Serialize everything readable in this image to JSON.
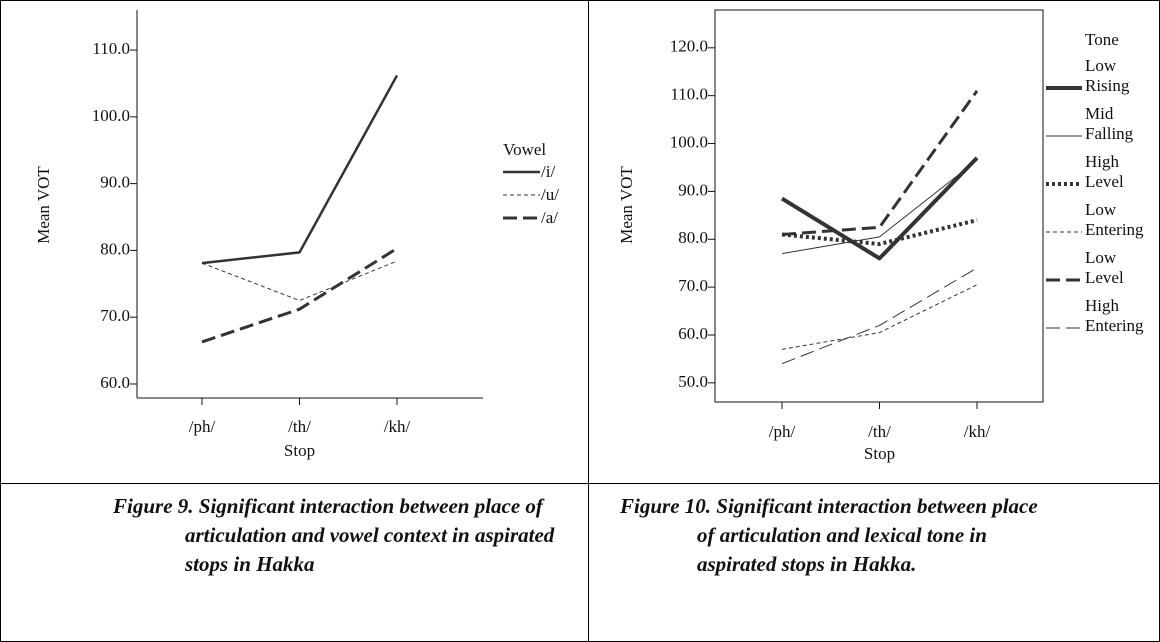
{
  "chart_data": [
    {
      "type": "line",
      "y_label": "Mean VOT",
      "x_label": "Stop",
      "legend_title": "Vowel",
      "categories": [
        "/ph/",
        "/th/",
        "/kh/"
      ],
      "ylim": [
        57.9,
        116.0
      ],
      "yticks": [
        {
          "value": 60,
          "label": "60.0"
        },
        {
          "value": 70,
          "label": "70.0"
        },
        {
          "value": 80,
          "label": "80.0"
        },
        {
          "value": 90,
          "label": "90.0"
        },
        {
          "value": 100,
          "label": "100.0"
        },
        {
          "value": 110,
          "label": "110.0"
        }
      ],
      "frame": false,
      "series": [
        {
          "name": "/i/",
          "color": "#333333",
          "linestyle": "solid",
          "linewidth": 2.5,
          "values": [
            78.1,
            79.7,
            106.2
          ]
        },
        {
          "name": "/u/",
          "color": "#333333",
          "linestyle": "dashed",
          "linewidth": 1,
          "values": [
            78.1,
            72.5,
            78.4
          ]
        },
        {
          "name": "/a/",
          "color": "#333333",
          "linestyle": "longdash",
          "linewidth": 3,
          "values": [
            66.3,
            71.2,
            80.3
          ]
        }
      ],
      "caption": "Figure 9. Significant interaction between place of articulation and vowel context in aspirated stops in Hakka"
    },
    {
      "type": "line",
      "y_label": "Mean VOT",
      "x_label": "Stop",
      "legend_title": "Tone",
      "categories": [
        "/ph/",
        "/th/",
        "/kh/"
      ],
      "ylim": [
        46.0,
        127.9
      ],
      "yticks": [
        {
          "value": 50,
          "label": "50.0"
        },
        {
          "value": 60,
          "label": "60.0"
        },
        {
          "value": 70,
          "label": "70.0"
        },
        {
          "value": 80,
          "label": "80.0"
        },
        {
          "value": 90,
          "label": "90.0"
        },
        {
          "value": 100,
          "label": "100.0"
        },
        {
          "value": 110,
          "label": "110.0"
        },
        {
          "value": 120,
          "label": "120.0"
        }
      ],
      "frame": true,
      "series": [
        {
          "name": "Low Rising",
          "color": "#333333",
          "linestyle": "solid",
          "linewidth": 4,
          "values": [
            88.5,
            76.0,
            97.0
          ]
        },
        {
          "name": "Mid Falling",
          "color": "#333333",
          "linestyle": "solid",
          "linewidth": 1,
          "values": [
            77.0,
            80.5,
            96.5
          ]
        },
        {
          "name": "High Level",
          "color": "#333333",
          "linestyle": "dotted",
          "linewidth": 4,
          "values": [
            81.0,
            79.0,
            84.0
          ]
        },
        {
          "name": "Low Entering",
          "color": "#333333",
          "linestyle": "dashed",
          "linewidth": 1,
          "values": [
            57.0,
            60.5,
            70.5
          ]
        },
        {
          "name": "Low Level",
          "color": "#333333",
          "linestyle": "longdash",
          "linewidth": 3,
          "values": [
            81.0,
            82.5,
            111.0
          ]
        },
        {
          "name": "High Entering",
          "color": "#333333",
          "linestyle": "longdash",
          "linewidth": 1,
          "values": [
            54.0,
            62.0,
            74.0
          ]
        }
      ],
      "caption": "Figure 10. Significant interaction between place of articulation and lexical tone in aspirated stops in Hakka."
    }
  ]
}
